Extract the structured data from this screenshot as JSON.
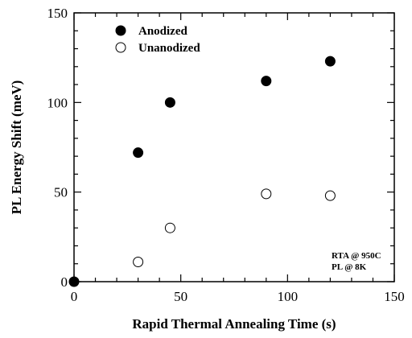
{
  "chart_data": {
    "type": "scatter",
    "xlabel": "Rapid Thermal Annealing Time (s)",
    "ylabel": "PL Energy Shift (meV)",
    "xlim": [
      0,
      150
    ],
    "ylim": [
      0,
      150
    ],
    "xticks": [
      0,
      50,
      100,
      150
    ],
    "yticks": [
      0,
      50,
      100,
      150
    ],
    "x_tick_labels": [
      "0",
      "50",
      "100",
      "150"
    ],
    "y_tick_labels": [
      "0",
      "50",
      "100",
      "150"
    ],
    "grid": false,
    "legend_position": "top-left",
    "series": [
      {
        "name": "Anodized",
        "marker": "filled-circle",
        "color": "#000000",
        "x": [
          0,
          30,
          45,
          90,
          120
        ],
        "y": [
          0,
          72,
          100,
          112,
          123
        ]
      },
      {
        "name": "Unanodized",
        "marker": "open-circle",
        "color": "#000000",
        "x": [
          30,
          45,
          90,
          120
        ],
        "y": [
          11,
          30,
          49,
          48
        ]
      }
    ],
    "annotations": [
      "RTA @ 950C",
      "PL @ 8K"
    ]
  }
}
